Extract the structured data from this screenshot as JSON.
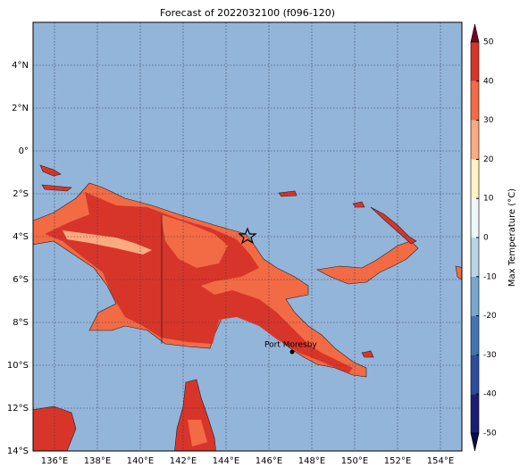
{
  "title": "Forecast of 2022032100 (f096-120)",
  "map": {
    "lon_lim": [
      135,
      155
    ],
    "lat_lim": [
      -14,
      6
    ],
    "lon_ticks": [
      {
        "value": 136,
        "label": "136°E"
      },
      {
        "value": 138,
        "label": "138°E"
      },
      {
        "value": 140,
        "label": "140°E"
      },
      {
        "value": 142,
        "label": "142°E"
      },
      {
        "value": 144,
        "label": "144°E"
      },
      {
        "value": 146,
        "label": "146°E"
      },
      {
        "value": 148,
        "label": "148°E"
      },
      {
        "value": 150,
        "label": "150°E"
      },
      {
        "value": 152,
        "label": "152°E"
      },
      {
        "value": 154,
        "label": "154°E"
      }
    ],
    "lat_ticks": [
      {
        "value": 4,
        "label": "4°N"
      },
      {
        "value": 2,
        "label": "2°N"
      },
      {
        "value": 0,
        "label": "0°"
      },
      {
        "value": -2,
        "label": "2°S"
      },
      {
        "value": -4,
        "label": "4°S"
      },
      {
        "value": -6,
        "label": "6°S"
      },
      {
        "value": -8,
        "label": "8°S"
      },
      {
        "value": -10,
        "label": "10°S"
      },
      {
        "value": -12,
        "label": "12°S"
      },
      {
        "value": -14,
        "label": "14°S"
      }
    ],
    "city": "Port Moresby"
  },
  "colorbar": {
    "label": "Max Temperature (°C)",
    "lim": [
      -50,
      50
    ],
    "ticks": [
      -50,
      -40,
      -30,
      -20,
      -10,
      0,
      10,
      20,
      30,
      40,
      50
    ],
    "colors": [
      "#1c1c78",
      "#2c4d9c",
      "#4275b5",
      "#77a8d0",
      "#b7d6e8",
      "#eef7fa",
      "#fff2c4",
      "#fcaa80",
      "#f26b45",
      "#d8352a"
    ]
  }
}
